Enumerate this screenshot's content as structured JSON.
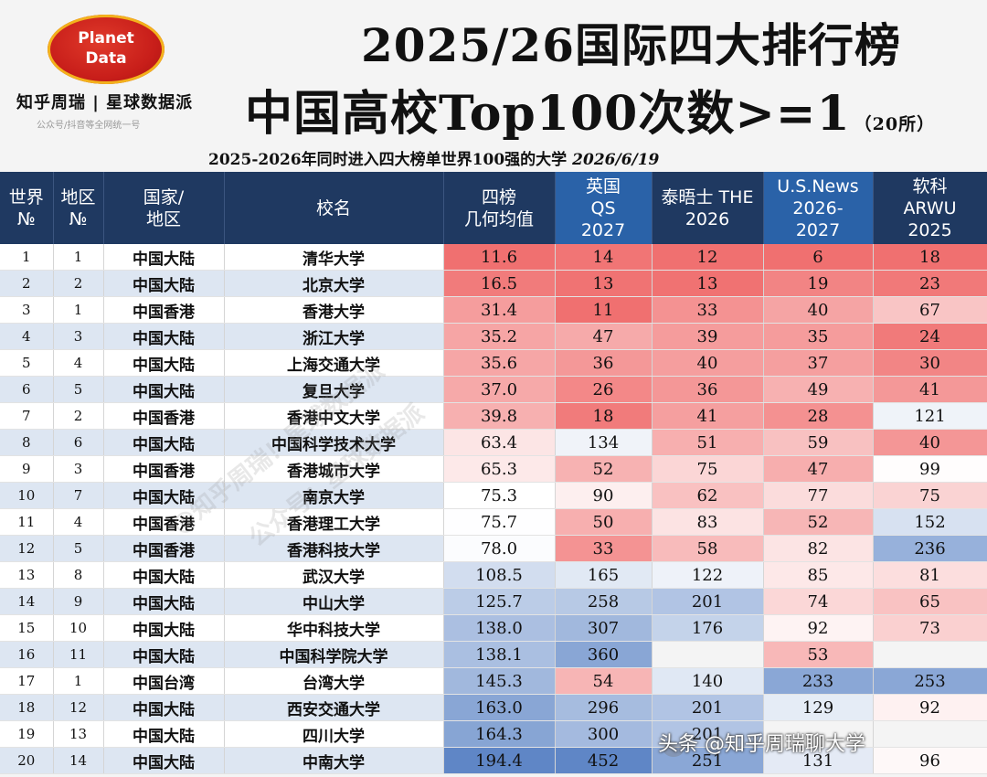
{
  "logo": {
    "line1": "Planet",
    "line2": "Data"
  },
  "brand": {
    "name": "知乎周瑞 | 星球数据派",
    "sub": "公众号/抖音等全网统一号"
  },
  "title": {
    "line1": "2025/26国际四大排行榜",
    "line2": "中国高校Top100次数>=1",
    "count": "（20所）",
    "subtitle": "2025-2026年同时进入四大榜单世界100强的大学",
    "date": "2026/6/19"
  },
  "columns": {
    "world_rank": "世界\n№",
    "region_rank": "地区\n№",
    "country": "国家/\n地区",
    "school": "校名",
    "geo_mean": "四榜\n几何均值",
    "qs": "英国\nQS\n2027",
    "the": "泰晤士 THE\n2026",
    "usnews": "U.S.News\n2026-\n2027",
    "arwu": "软科\nARWU\n2025"
  },
  "rows": [
    {
      "w": "1",
      "r": "1",
      "c": "中国大陆",
      "s": "清华大学",
      "g": "11.6",
      "qs": "14",
      "the": "12",
      "us": "6",
      "arwu": "18"
    },
    {
      "w": "2",
      "r": "2",
      "c": "中国大陆",
      "s": "北京大学",
      "g": "16.5",
      "qs": "13",
      "the": "13",
      "us": "19",
      "arwu": "23"
    },
    {
      "w": "3",
      "r": "1",
      "c": "中国香港",
      "s": "香港大学",
      "g": "31.4",
      "qs": "11",
      "the": "33",
      "us": "40",
      "arwu": "67"
    },
    {
      "w": "4",
      "r": "3",
      "c": "中国大陆",
      "s": "浙江大学",
      "g": "35.2",
      "qs": "47",
      "the": "39",
      "us": "35",
      "arwu": "24"
    },
    {
      "w": "5",
      "r": "4",
      "c": "中国大陆",
      "s": "上海交通大学",
      "g": "35.6",
      "qs": "36",
      "the": "40",
      "us": "37",
      "arwu": "30"
    },
    {
      "w": "6",
      "r": "5",
      "c": "中国大陆",
      "s": "复旦大学",
      "g": "37.0",
      "qs": "26",
      "the": "36",
      "us": "49",
      "arwu": "41"
    },
    {
      "w": "7",
      "r": "2",
      "c": "中国香港",
      "s": "香港中文大学",
      "g": "39.8",
      "qs": "18",
      "the": "41",
      "us": "28",
      "arwu": "121"
    },
    {
      "w": "8",
      "r": "6",
      "c": "中国大陆",
      "s": "中国科学技术大学",
      "g": "63.4",
      "qs": "134",
      "the": "51",
      "us": "59",
      "arwu": "40"
    },
    {
      "w": "9",
      "r": "3",
      "c": "中国香港",
      "s": "香港城市大学",
      "g": "65.3",
      "qs": "52",
      "the": "75",
      "us": "47",
      "arwu": "99"
    },
    {
      "w": "10",
      "r": "7",
      "c": "中国大陆",
      "s": "南京大学",
      "g": "75.3",
      "qs": "90",
      "the": "62",
      "us": "77",
      "arwu": "75"
    },
    {
      "w": "11",
      "r": "4",
      "c": "中国香港",
      "s": "香港理工大学",
      "g": "75.7",
      "qs": "50",
      "the": "83",
      "us": "52",
      "arwu": "152"
    },
    {
      "w": "12",
      "r": "5",
      "c": "中国香港",
      "s": "香港科技大学",
      "g": "78.0",
      "qs": "33",
      "the": "58",
      "us": "82",
      "arwu": "236"
    },
    {
      "w": "13",
      "r": "8",
      "c": "中国大陆",
      "s": "武汉大学",
      "g": "108.5",
      "qs": "165",
      "the": "122",
      "us": "85",
      "arwu": "81"
    },
    {
      "w": "14",
      "r": "9",
      "c": "中国大陆",
      "s": "中山大学",
      "g": "125.7",
      "qs": "258",
      "the": "201",
      "us": "74",
      "arwu": "65"
    },
    {
      "w": "15",
      "r": "10",
      "c": "中国大陆",
      "s": "华中科技大学",
      "g": "138.0",
      "qs": "307",
      "the": "176",
      "us": "92",
      "arwu": "73"
    },
    {
      "w": "16",
      "r": "11",
      "c": "中国大陆",
      "s": "中国科学院大学",
      "g": "138.1",
      "qs": "360",
      "the": "",
      "us": "53",
      "arwu": ""
    },
    {
      "w": "17",
      "r": "1",
      "c": "中国台湾",
      "s": "台湾大学",
      "g": "145.3",
      "qs": "54",
      "the": "140",
      "us": "233",
      "arwu": "253"
    },
    {
      "w": "18",
      "r": "12",
      "c": "中国大陆",
      "s": "西安交通大学",
      "g": "163.0",
      "qs": "296",
      "the": "201",
      "us": "129",
      "arwu": "92"
    },
    {
      "w": "19",
      "r": "13",
      "c": "中国大陆",
      "s": "四川大学",
      "g": "164.3",
      "qs": "300",
      "the": "201",
      "us": "",
      "arwu": ""
    },
    {
      "w": "20",
      "r": "14",
      "c": "中国大陆",
      "s": "中南大学",
      "g": "194.4",
      "qs": "452",
      "the": "251",
      "us": "131",
      "arwu": "96"
    }
  ],
  "watermarks": [
    "@知乎周瑞！星球数据派",
    "公众号：星球数据派"
  ],
  "footer": {
    "text": "头条 @知乎周瑞聊大学",
    "icon": "wechat-icon"
  },
  "colors": {
    "header_bg": "#1f3961",
    "low_rank": "#e84a4a",
    "high_rank": "#4a78c0"
  }
}
